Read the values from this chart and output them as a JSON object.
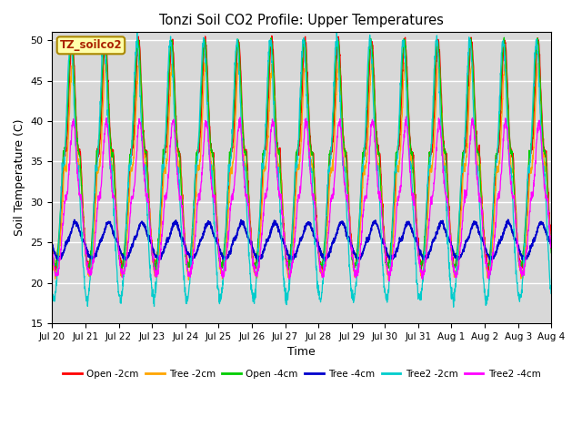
{
  "title": "Tonzi Soil CO2 Profile: Upper Temperatures",
  "xlabel": "Time",
  "ylabel": "Soil Temperature (C)",
  "ylim": [
    15,
    51
  ],
  "yticks": [
    15,
    20,
    25,
    30,
    35,
    40,
    45,
    50
  ],
  "x_labels": [
    "Jul 20",
    "Jul 21",
    "Jul 22",
    "Jul 23",
    "Jul 24",
    "Jul 25",
    "Jul 26",
    "Jul 27",
    "Jul 28",
    "Jul 29",
    "Jul 30",
    "Jul 31",
    "Aug 1",
    "Aug 2",
    "Aug 3",
    "Aug 4"
  ],
  "legend_labels": [
    "Open -2cm",
    "Tree -2cm",
    "Open -4cm",
    "Tree -4cm",
    "Tree2 -2cm",
    "Tree2 -4cm"
  ],
  "legend_colors": [
    "#ff0000",
    "#ffa500",
    "#00cc00",
    "#0000cc",
    "#00cccc",
    "#ff00ff"
  ],
  "annotation_text": "TZ_soilco2",
  "annotation_color": "#aa2200",
  "annotation_bg": "#ffffaa",
  "annotation_edge": "#aa8800",
  "bg_color": "#d8d8d8",
  "n_days": 15,
  "pts_per_day": 144
}
